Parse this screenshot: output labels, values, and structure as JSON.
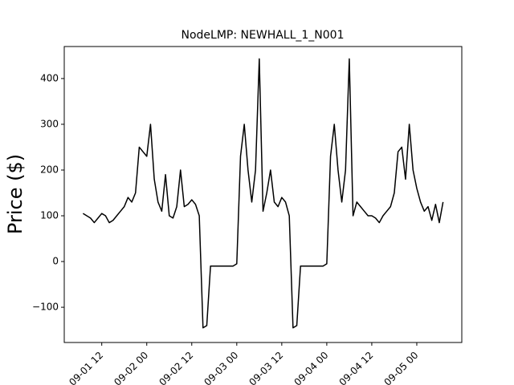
{
  "chart_data": {
    "type": "line",
    "title": "NodeLMP: NEWHALL_1_N001",
    "y_label": "Price ($)",
    "x": [
      "09-01 07",
      "09-01 08",
      "09-01 09",
      "09-01 10",
      "09-01 11",
      "09-01 12",
      "09-01 13",
      "09-01 14",
      "09-01 15",
      "09-01 16",
      "09-01 17",
      "09-01 18",
      "09-01 19",
      "09-01 20",
      "09-01 21",
      "09-01 22",
      "09-01 23",
      "09-02 00",
      "09-02 01",
      "09-02 02",
      "09-02 03",
      "09-02 04",
      "09-02 05",
      "09-02 06",
      "09-02 07",
      "09-02 08",
      "09-02 09",
      "09-02 10",
      "09-02 11",
      "09-02 12",
      "09-02 13",
      "09-02 14",
      "09-02 15",
      "09-02 16",
      "09-02 17",
      "09-02 18",
      "09-02 19",
      "09-02 20",
      "09-02 21",
      "09-02 22",
      "09-02 23",
      "09-03 00",
      "09-03 01",
      "09-03 02",
      "09-03 03",
      "09-03 04",
      "09-03 05",
      "09-03 06",
      "09-03 07",
      "09-03 08",
      "09-03 09",
      "09-03 10",
      "09-03 11",
      "09-03 12",
      "09-03 13",
      "09-03 14",
      "09-03 15",
      "09-03 16",
      "09-03 17",
      "09-03 18",
      "09-03 19",
      "09-03 20",
      "09-03 21",
      "09-03 22",
      "09-03 23",
      "09-04 00",
      "09-04 01",
      "09-04 02",
      "09-04 03",
      "09-04 04",
      "09-04 05",
      "09-04 06",
      "09-04 07",
      "09-04 08",
      "09-04 09",
      "09-04 10",
      "09-04 11",
      "09-04 12",
      "09-04 13",
      "09-04 14",
      "09-04 15",
      "09-04 16",
      "09-04 17",
      "09-04 18",
      "09-04 19",
      "09-04 20",
      "09-04 21",
      "09-04 22",
      "09-04 23",
      "09-05 00",
      "09-05 01",
      "09-05 02",
      "09-05 03",
      "09-05 04",
      "09-05 05",
      "09-05 06",
      "09-05 07"
    ],
    "series": [
      {
        "color": "#000000",
        "values": [
          105,
          100,
          95,
          85,
          95,
          105,
          100,
          85,
          90,
          100,
          110,
          120,
          140,
          130,
          150,
          250,
          240,
          230,
          300,
          180,
          130,
          110,
          190,
          100,
          95,
          120,
          200,
          120,
          125,
          135,
          125,
          100,
          -145,
          -140,
          -10,
          -10,
          -10,
          -10,
          -10,
          -10,
          -10,
          -5,
          230,
          300,
          200,
          130,
          200,
          443,
          110,
          150,
          200,
          130,
          120,
          140,
          130,
          100,
          -145,
          -140,
          -10,
          -10,
          -10,
          -10,
          -10,
          -10,
          -10,
          -5,
          230,
          300,
          200,
          130,
          200,
          443,
          100,
          130,
          120,
          110,
          100,
          100,
          95,
          85,
          100,
          110,
          120,
          150,
          240,
          250,
          180,
          300,
          200,
          160,
          130,
          110,
          120,
          90,
          125,
          85,
          130
        ]
      }
    ],
    "xlim": [
      "09-01 02",
      "09-05 12"
    ],
    "xticks": [
      "09-01 12",
      "09-02 00",
      "09-02 12",
      "09-03 00",
      "09-03 12",
      "09-04 00",
      "09-04 12",
      "09-05 00"
    ],
    "ylim": [
      -177,
      470
    ],
    "yticks": [
      {
        "value": -100,
        "label": "−100"
      },
      0,
      100,
      200,
      300,
      400
    ]
  }
}
